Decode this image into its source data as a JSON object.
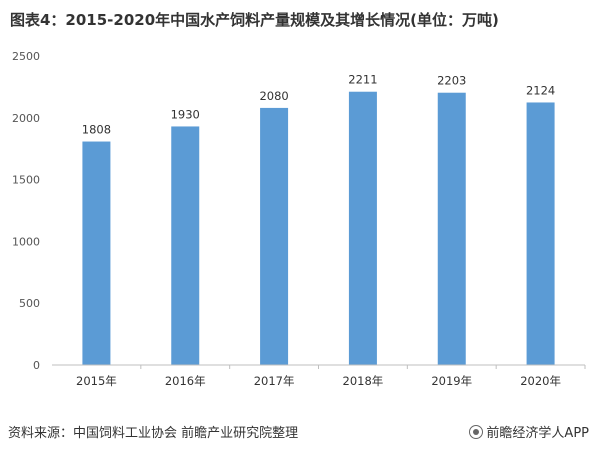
{
  "title": "图表4：2015-2020年中国水产饲料产量规模及其增长情况(单位：万吨)",
  "source": "资料来源：中国饲料工业协会 前瞻产业研究院整理",
  "brand": "前瞻经济学人APP",
  "colors": {
    "bar": "#5b9bd5",
    "axis": "#bfbfbf"
  },
  "chart_data": {
    "type": "bar",
    "categories": [
      "2015年",
      "2016年",
      "2017年",
      "2018年",
      "2019年",
      "2020年"
    ],
    "values": [
      1808,
      1930,
      2080,
      2211,
      2203,
      2124
    ],
    "ylim": [
      0,
      2500
    ],
    "yticks": [
      0,
      500,
      1000,
      1500,
      2000,
      2500
    ],
    "grid": false,
    "legend": "none"
  }
}
